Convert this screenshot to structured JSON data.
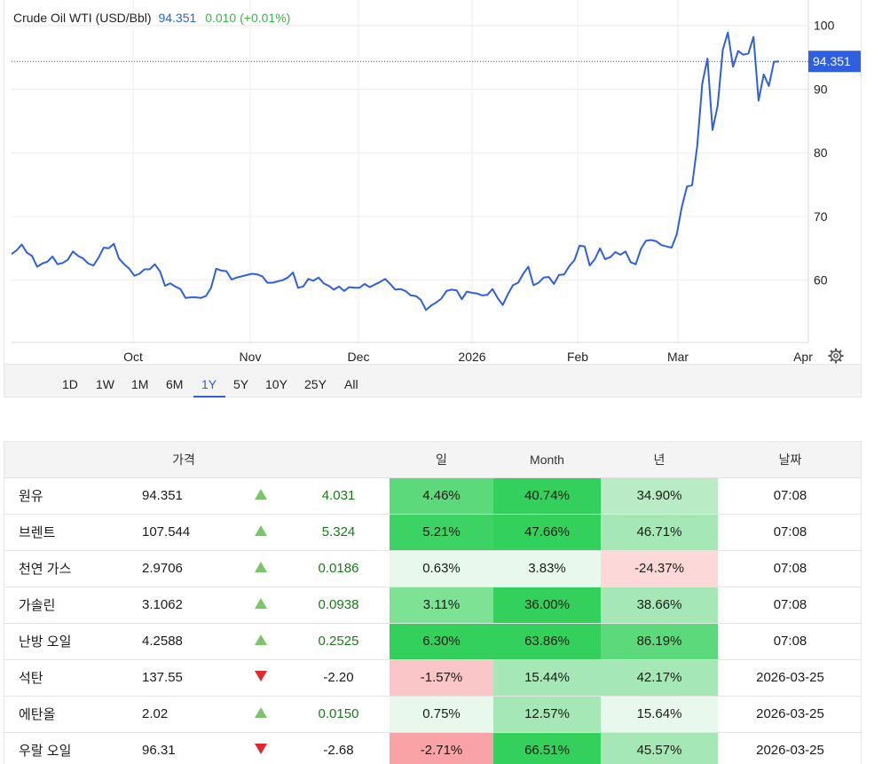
{
  "chart_header": {
    "title": "Crude Oil WTI (USD/Bbl)",
    "last": "94.351",
    "change": "0.010 (+0.01%)"
  },
  "chart_data": {
    "type": "line",
    "title": "Crude Oil WTI (USD/Bbl)",
    "xlabel": "",
    "ylabel": "",
    "ylim": [
      50.2,
      104
    ],
    "y_ticks": [
      60,
      70,
      80,
      90,
      100
    ],
    "x_tick_labels": [
      "Oct",
      "Nov",
      "Dec",
      "2026",
      "Feb",
      "Mar",
      "Apr"
    ],
    "last_value_label": "94.351",
    "last_value": 94.351,
    "line_color": "#2f5fe0",
    "series": [
      {
        "name": "Crude Oil WTI",
        "values": [
          64.1,
          64.7,
          65.6,
          64.3,
          63.8,
          62.1,
          62.6,
          62.9,
          63.7,
          62.5,
          62.7,
          63.2,
          64.5,
          63.8,
          63.4,
          62.6,
          62.3,
          63.5,
          65.1,
          65.0,
          65.7,
          63.4,
          62.5,
          61.8,
          60.7,
          61.0,
          61.7,
          61.7,
          62.5,
          61.4,
          59.1,
          59.5,
          59.0,
          58.6,
          57.2,
          57.3,
          57.3,
          57.2,
          57.5,
          58.8,
          61.8,
          61.5,
          61.4,
          60.1,
          60.4,
          60.6,
          60.8,
          61.0,
          60.9,
          60.6,
          59.6,
          59.6,
          59.8,
          60.0,
          60.4,
          61.2,
          58.8,
          59.0,
          60.2,
          59.9,
          60.4,
          59.5,
          59.1,
          58.5,
          59.0,
          58.3,
          58.9,
          58.8,
          58.8,
          59.4,
          58.9,
          59.3,
          59.7,
          60.2,
          59.4,
          58.5,
          58.6,
          58.3,
          57.6,
          57.5,
          56.9,
          55.3,
          56.0,
          56.5,
          57.1,
          58.3,
          58.5,
          58.4,
          57.0,
          58.2,
          58.0,
          57.9,
          57.6,
          57.7,
          58.6,
          57.2,
          56.1,
          57.8,
          59.2,
          59.6,
          61.0,
          62.1,
          59.2,
          59.6,
          60.4,
          60.5,
          59.4,
          60.8,
          60.9,
          62.2,
          63.1,
          65.4,
          65.3,
          62.3,
          63.3,
          65.0,
          63.3,
          63.6,
          64.4,
          64.0,
          64.5,
          62.8,
          62.5,
          64.9,
          66.2,
          66.3,
          66.1,
          65.5,
          65.3,
          65.1,
          67.2,
          71.5,
          74.7,
          74.9,
          81.0,
          90.9,
          94.8,
          83.6,
          87.4,
          96.2,
          98.9,
          93.5,
          96.0,
          95.4,
          95.6,
          98.2,
          88.2,
          92.3,
          90.5,
          94.3,
          94.351
        ]
      }
    ]
  },
  "range_buttons": [
    "1D",
    "1W",
    "1M",
    "6M",
    "1Y",
    "5Y",
    "10Y",
    "25Y",
    "All"
  ],
  "range_active": "1Y",
  "table": {
    "headers": [
      "",
      "가격",
      "",
      "",
      "일",
      "Month",
      "년",
      "날짜"
    ],
    "rows": [
      {
        "name": "원유",
        "price": "94.351",
        "dir": "up",
        "change": "4.031",
        "day": "4.46%",
        "month": "40.74%",
        "year": "34.90%",
        "date": "07:08",
        "day_cls": "g5",
        "month_cls": "g7",
        "year_cls": "g2"
      },
      {
        "name": "브렌트",
        "price": "107.544",
        "dir": "up",
        "change": "5.324",
        "day": "5.21%",
        "month": "47.66%",
        "year": "46.71%",
        "date": "07:08",
        "day_cls": "g6",
        "month_cls": "g7",
        "year_cls": "g3"
      },
      {
        "name": "천연 가스",
        "price": "2.9706",
        "dir": "up",
        "change": "0.0186",
        "day": "0.63%",
        "month": "3.83%",
        "year": "-24.37%",
        "date": "07:08",
        "day_cls": "g1",
        "month_cls": "g1",
        "year_cls": "r1"
      },
      {
        "name": "가솔린",
        "price": "3.1062",
        "dir": "up",
        "change": "0.0938",
        "day": "3.11%",
        "month": "36.00%",
        "year": "38.66%",
        "date": "07:08",
        "day_cls": "g4",
        "month_cls": "g7",
        "year_cls": "g3"
      },
      {
        "name": "난방 오일",
        "price": "4.2588",
        "dir": "up",
        "change": "0.2525",
        "day": "6.30%",
        "month": "63.86%",
        "year": "86.19%",
        "date": "07:08",
        "day_cls": "g7",
        "month_cls": "g7",
        "year_cls": "g5"
      },
      {
        "name": "석탄",
        "price": "137.55",
        "dir": "down",
        "change": "-2.20",
        "day": "-1.57%",
        "month": "15.44%",
        "year": "42.17%",
        "date": "2026-03-25",
        "day_cls": "r2",
        "month_cls": "g3",
        "year_cls": "g3"
      },
      {
        "name": "에탄올",
        "price": "2.02",
        "dir": "up",
        "change": "0.0150",
        "day": "0.75%",
        "month": "12.57%",
        "year": "15.64%",
        "date": "2026-03-25",
        "day_cls": "g1",
        "month_cls": "g3",
        "year_cls": "g1"
      },
      {
        "name": "우랄 오일",
        "price": "96.31",
        "dir": "down",
        "change": "-2.68",
        "day": "-2.71%",
        "month": "66.51%",
        "year": "45.57%",
        "date": "2026-03-25",
        "day_cls": "r3",
        "month_cls": "g7",
        "year_cls": "g3"
      }
    ]
  }
}
